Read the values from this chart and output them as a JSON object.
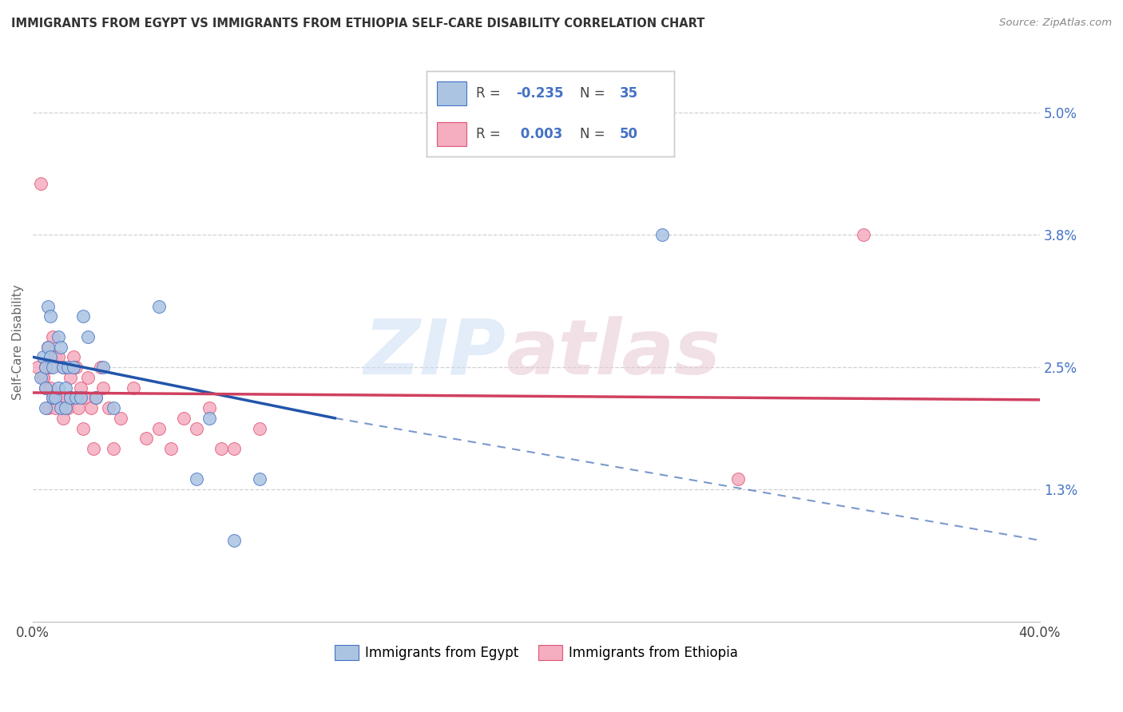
{
  "title": "IMMIGRANTS FROM EGYPT VS IMMIGRANTS FROM ETHIOPIA SELF-CARE DISABILITY CORRELATION CHART",
  "source": "Source: ZipAtlas.com",
  "ylabel": "Self-Care Disability",
  "xlim": [
    0.0,
    0.4
  ],
  "ylim": [
    0.0,
    0.055
  ],
  "yticks": [
    0.013,
    0.025,
    0.038,
    0.05
  ],
  "ytick_labels": [
    "1.3%",
    "2.5%",
    "3.8%",
    "5.0%"
  ],
  "egypt_color": "#aac4e2",
  "ethiopia_color": "#f5adc0",
  "egypt_edge_color": "#4472c4",
  "ethiopia_edge_color": "#e05575",
  "egypt_line_color": "#2255aa",
  "ethiopia_line_color": "#d04060",
  "grid_color": "#cccccc",
  "background_color": "#ffffff",
  "watermark_zip_color": "#ccddf0",
  "watermark_atlas_color": "#e8d0d8",
  "egypt_x": [
    0.003,
    0.004,
    0.005,
    0.005,
    0.005,
    0.006,
    0.006,
    0.007,
    0.007,
    0.008,
    0.008,
    0.009,
    0.01,
    0.01,
    0.011,
    0.011,
    0.012,
    0.013,
    0.013,
    0.014,
    0.015,
    0.016,
    0.017,
    0.019,
    0.02,
    0.022,
    0.025,
    0.028,
    0.032,
    0.05,
    0.065,
    0.07,
    0.08,
    0.09,
    0.25
  ],
  "egypt_y": [
    0.024,
    0.026,
    0.025,
    0.023,
    0.021,
    0.031,
    0.027,
    0.03,
    0.026,
    0.025,
    0.022,
    0.022,
    0.028,
    0.023,
    0.027,
    0.021,
    0.025,
    0.023,
    0.021,
    0.025,
    0.022,
    0.025,
    0.022,
    0.022,
    0.03,
    0.028,
    0.022,
    0.025,
    0.021,
    0.031,
    0.014,
    0.02,
    0.008,
    0.014,
    0.038
  ],
  "ethiopia_x": [
    0.002,
    0.003,
    0.004,
    0.004,
    0.005,
    0.005,
    0.006,
    0.006,
    0.007,
    0.007,
    0.008,
    0.008,
    0.009,
    0.009,
    0.01,
    0.01,
    0.011,
    0.012,
    0.012,
    0.013,
    0.014,
    0.015,
    0.015,
    0.016,
    0.017,
    0.018,
    0.019,
    0.02,
    0.021,
    0.022,
    0.023,
    0.024,
    0.025,
    0.027,
    0.028,
    0.03,
    0.032,
    0.035,
    0.04,
    0.045,
    0.05,
    0.055,
    0.06,
    0.065,
    0.07,
    0.075,
    0.08,
    0.09,
    0.28,
    0.33
  ],
  "ethiopia_y": [
    0.025,
    0.043,
    0.024,
    0.024,
    0.025,
    0.023,
    0.021,
    0.027,
    0.025,
    0.023,
    0.028,
    0.022,
    0.026,
    0.021,
    0.022,
    0.026,
    0.022,
    0.025,
    0.02,
    0.022,
    0.021,
    0.024,
    0.022,
    0.026,
    0.025,
    0.021,
    0.023,
    0.019,
    0.022,
    0.024,
    0.021,
    0.017,
    0.022,
    0.025,
    0.023,
    0.021,
    0.017,
    0.02,
    0.023,
    0.018,
    0.019,
    0.017,
    0.02,
    0.019,
    0.021,
    0.017,
    0.017,
    0.019,
    0.014,
    0.038
  ],
  "egypt_line_solid": [
    [
      0.0,
      0.026
    ],
    [
      0.15,
      0.018
    ]
  ],
  "egypt_line_dashed": [
    [
      0.15,
      0.018
    ],
    [
      0.4,
      0.006
    ]
  ],
  "ethiopia_line_solid": [
    [
      0.0,
      0.022
    ],
    [
      0.4,
      0.022
    ]
  ],
  "ethiopia_line_dashed": [
    [
      0.4,
      0.022
    ],
    [
      0.4,
      0.022
    ]
  ]
}
